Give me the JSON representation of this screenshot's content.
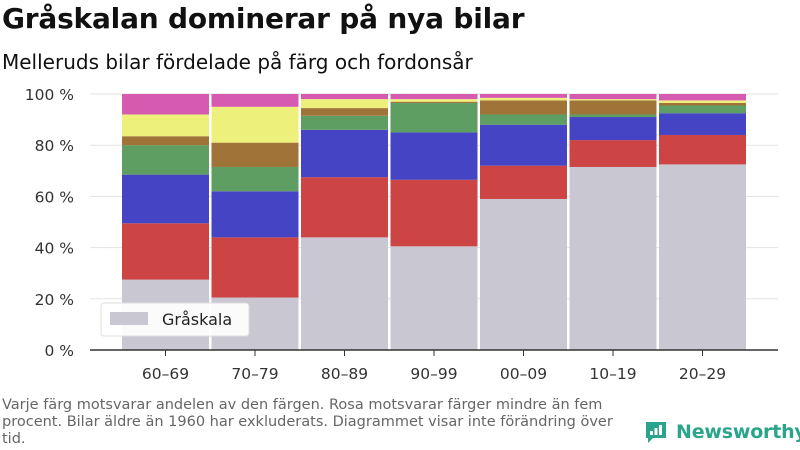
{
  "title": "Gråskalan dominerar på nya bilar",
  "subtitle": "Melleruds bilar fördelade på färg och fordonsår",
  "footnote": "Varje färg motsvarar andelen av den färgen. Rosa motsvarar färger mindre än fem procent. Bilar äldre än 1960 har exkluderats. Diagrammet visar inte förändring över tid.",
  "brand": {
    "name": "Newsworthy",
    "logo_icon": "newsworthy-logo-icon",
    "color": "#2aa58b"
  },
  "chart_data": {
    "type": "bar",
    "stacked": true,
    "categories": [
      "60–69",
      "70–79",
      "80–89",
      "90–99",
      "00–09",
      "10–19",
      "20–29"
    ],
    "y_ticks": [
      "0 %",
      "20 %",
      "40 %",
      "60 %",
      "80 %",
      "100 %"
    ],
    "ylim": [
      0,
      100
    ],
    "grid": true,
    "legend": {
      "position": "bottom-left",
      "entries": [
        "Gråskala"
      ]
    },
    "series": [
      {
        "name": "Gråskala",
        "color": "#c8c7d2",
        "values": [
          27.5,
          20.5,
          44,
          40.5,
          59,
          71.5,
          72.5
        ]
      },
      {
        "color": "#cc4444",
        "values": [
          22,
          23.5,
          23.5,
          26,
          13,
          10.5,
          11.5
        ]
      },
      {
        "color": "#4444c4",
        "values": [
          19,
          18,
          18.5,
          18.5,
          16,
          9,
          8.5
        ]
      },
      {
        "color": "#5e9e62",
        "values": [
          11.5,
          9.5,
          5.5,
          11.5,
          4,
          1,
          3
        ]
      },
      {
        "color": "#a07438",
        "values": [
          3.5,
          9.5,
          3,
          0.5,
          5.5,
          5.5,
          1
        ]
      },
      {
        "color": "#eef07c",
        "values": [
          8.5,
          14,
          3.5,
          1,
          1,
          0.5,
          1
        ]
      },
      {
        "color": "#d65ab0",
        "values": [
          8,
          5,
          2,
          2,
          1.5,
          2,
          2.5
        ]
      }
    ]
  }
}
